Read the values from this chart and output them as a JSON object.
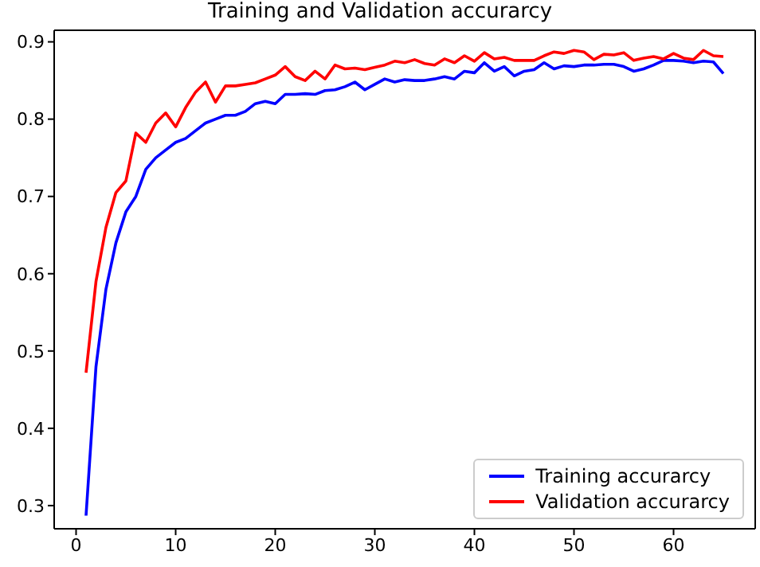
{
  "chart_data": {
    "type": "line",
    "title": "Training and Validation accurarcy",
    "x": [
      1,
      2,
      3,
      4,
      5,
      6,
      7,
      8,
      9,
      10,
      11,
      12,
      13,
      14,
      15,
      16,
      17,
      18,
      19,
      20,
      21,
      22,
      23,
      24,
      25,
      26,
      27,
      28,
      29,
      30,
      31,
      32,
      33,
      34,
      35,
      36,
      37,
      38,
      39,
      40,
      41,
      42,
      43,
      44,
      45,
      46,
      47,
      48,
      49,
      50,
      51,
      52,
      53,
      54,
      55,
      56,
      57,
      58,
      59,
      60,
      61,
      62,
      63,
      64,
      65
    ],
    "series": [
      {
        "name": "Training accurarcy",
        "color": "#0000ff",
        "values": [
          0.287,
          0.48,
          0.58,
          0.64,
          0.68,
          0.7,
          0.735,
          0.75,
          0.76,
          0.77,
          0.775,
          0.785,
          0.795,
          0.8,
          0.805,
          0.805,
          0.81,
          0.82,
          0.823,
          0.82,
          0.832,
          0.832,
          0.833,
          0.832,
          0.837,
          0.838,
          0.842,
          0.848,
          0.838,
          0.845,
          0.852,
          0.848,
          0.851,
          0.85,
          0.85,
          0.852,
          0.855,
          0.852,
          0.862,
          0.86,
          0.873,
          0.862,
          0.868,
          0.856,
          0.862,
          0.864,
          0.873,
          0.865,
          0.869,
          0.868,
          0.87,
          0.87,
          0.871,
          0.871,
          0.868,
          0.862,
          0.865,
          0.87,
          0.876,
          0.876,
          0.875,
          0.873,
          0.875,
          0.874,
          0.859
        ]
      },
      {
        "name": "Validation accurarcy",
        "color": "#ff0000",
        "values": [
          0.472,
          0.59,
          0.66,
          0.705,
          0.72,
          0.782,
          0.77,
          0.795,
          0.808,
          0.79,
          0.815,
          0.835,
          0.848,
          0.822,
          0.843,
          0.843,
          0.845,
          0.847,
          0.852,
          0.857,
          0.868,
          0.855,
          0.85,
          0.862,
          0.852,
          0.87,
          0.865,
          0.866,
          0.864,
          0.867,
          0.87,
          0.875,
          0.873,
          0.877,
          0.872,
          0.87,
          0.878,
          0.873,
          0.882,
          0.875,
          0.886,
          0.878,
          0.88,
          0.876,
          0.876,
          0.876,
          0.882,
          0.887,
          0.885,
          0.889,
          0.887,
          0.877,
          0.884,
          0.883,
          0.886,
          0.876,
          0.879,
          0.881,
          0.878,
          0.885,
          0.879,
          0.877,
          0.889,
          0.882,
          0.881
        ]
      }
    ],
    "xlim": [
      -2.2,
      68.2
    ],
    "xticks": [
      0,
      10,
      20,
      30,
      40,
      50,
      60
    ],
    "ylim": [
      0.27,
      0.915
    ],
    "yticks": [
      0.3,
      0.4,
      0.5,
      0.6,
      0.7,
      0.8,
      0.9
    ],
    "legend": "bottom right",
    "grid": false,
    "marker": "none",
    "line_style": "solid"
  }
}
